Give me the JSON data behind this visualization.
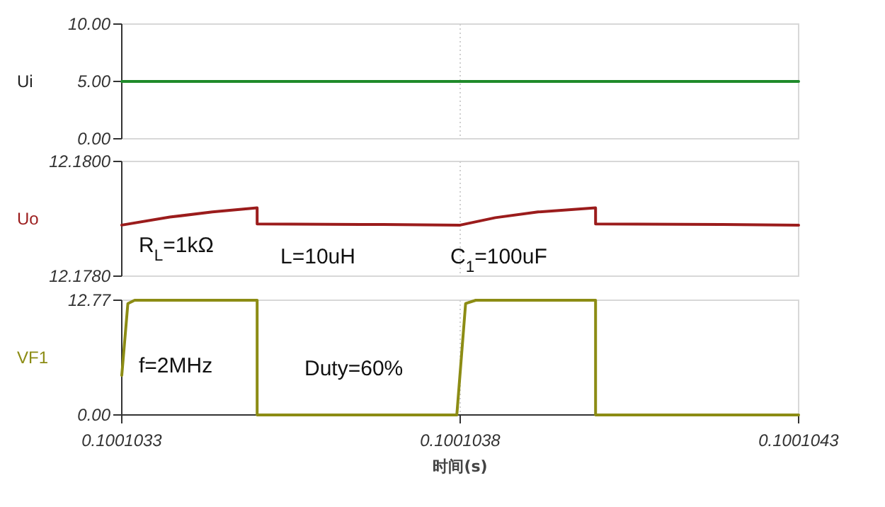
{
  "chart_data": [
    {
      "type": "line",
      "ylabel": "Ui",
      "xlim": [
        0.1001033,
        0.1001043
      ],
      "xticks": [
        0.1001033,
        0.1001038,
        0.1001043
      ],
      "ylim": [
        0,
        10
      ],
      "yticks": [
        {
          "value": 0,
          "label": "0.00"
        },
        {
          "value": 5,
          "label": "5.00"
        },
        {
          "value": 10,
          "label": "10.00"
        }
      ],
      "grid": "x",
      "tick_labels": "y",
      "series": [
        {
          "color": "#1f8a2a",
          "x": [
            0.1001033,
            0.1001043
          ],
          "values": [
            5,
            5
          ]
        }
      ]
    },
    {
      "type": "line",
      "ylabel": "Uo",
      "xlim": [
        0.1001033,
        0.1001043
      ],
      "xticks": [
        0.1001033,
        0.1001038,
        0.1001043
      ],
      "ylim": [
        12.178,
        12.18
      ],
      "yticks": [
        {
          "value": 12.178,
          "label": "12.1780"
        },
        {
          "value": 12.18,
          "label": "12.1800"
        }
      ],
      "grid": "x",
      "tick_labels": "y",
      "annotations": [
        "R$_{L}$=1kΩ",
        "L=10uH",
        "C$_{1}$=100uF"
      ],
      "series": [
        {
          "color": "#9b1c1c",
          "x": [
            0.1001033,
            0.100103371,
            0.100103434,
            0.1001035,
            0.1001035,
            0.100103685,
            0.1001038,
            0.100103852,
            0.100103915,
            0.100104,
            0.100104,
            0.100104187,
            0.1001043
          ],
          "values": [
            12.17889,
            12.17903,
            12.17912,
            12.17919,
            12.17891,
            12.1789,
            12.17889,
            12.17902,
            12.17912,
            12.17919,
            12.17891,
            12.1789,
            12.17889
          ]
        }
      ]
    },
    {
      "type": "line",
      "ylabel": "VF1",
      "xlabel": "时间(s)",
      "xlim": [
        0.1001033,
        0.1001043
      ],
      "xticks": [
        0.1001033,
        0.1001038,
        0.1001043
      ],
      "ylim": [
        0,
        12.77
      ],
      "yticks": [
        {
          "value": 0,
          "label": "0.00"
        },
        12.77
      ],
      "grid": "x",
      "annotations": [
        "f=2MHz",
        "Duty=60%"
      ],
      "series": [
        {
          "color": "#8c8c14",
          "x": [
            0.1001033,
            0.100103309,
            0.100103319,
            0.1001035,
            0.1001035,
            0.100103795,
            0.100103808,
            0.100103823,
            0.100104,
            0.100104,
            0.1001043
          ],
          "values": [
            4.4,
            12.4,
            12.77,
            12.77,
            0,
            0,
            12.4,
            12.77,
            12.77,
            0,
            0
          ]
        }
      ]
    }
  ]
}
